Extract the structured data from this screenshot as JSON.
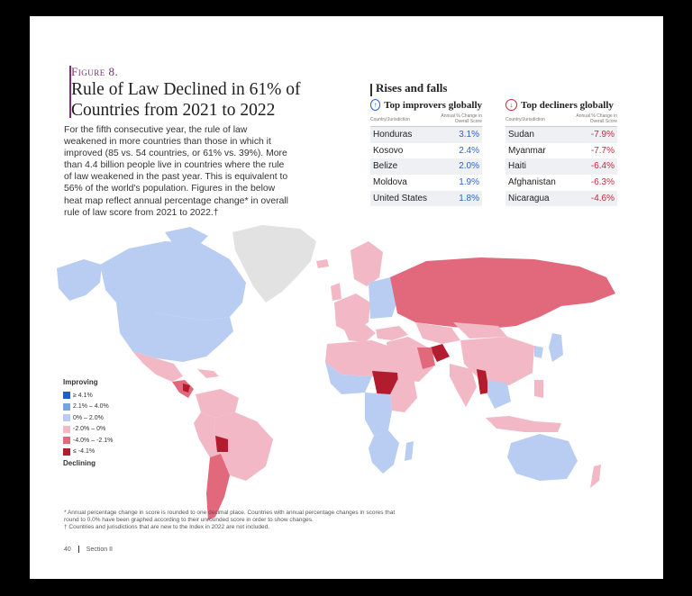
{
  "figure_label": "Figure 8.",
  "title_lines": [
    "Rule of Law Declined in 61% of",
    "Countries from 2021 to 2022"
  ],
  "body_lines": [
    "For the fifth consecutive year, the rule of law",
    "weakened in more countries than those in which it",
    "improved (85 vs. 54 countries, or 61% vs. 39%). More",
    "than 4.4 billion people live in countries where the rule",
    "of law weakened in the past year. This is equivalent to",
    "56% of the world's population. Figures in the below",
    "heat map reflect annual percentage change* in overall",
    "rule of law score from 2021 to 2022.†"
  ],
  "rises_falls_title": "Rises and falls",
  "improvers": {
    "title": "Top improvers globally",
    "icon": "up-arrow-circle-icon",
    "col_country": "Country/Jurisdiction",
    "col_value": "Annual % Change in Overall Score",
    "rows": [
      {
        "country": "Honduras",
        "value": "3.1%"
      },
      {
        "country": "Kosovo",
        "value": "2.4%"
      },
      {
        "country": "Belize",
        "value": "2.0%"
      },
      {
        "country": "Moldova",
        "value": "1.9%"
      },
      {
        "country": "United States",
        "value": "1.8%"
      }
    ]
  },
  "decliners": {
    "title": "Top decliners globally",
    "icon": "down-arrow-circle-icon",
    "col_country": "Country/Jurisdiction",
    "col_value": "Annual % Change in Overall Score",
    "rows": [
      {
        "country": "Sudan",
        "value": "-7.9%"
      },
      {
        "country": "Myanmar",
        "value": "-7.7%"
      },
      {
        "country": "Haiti",
        "value": "-6.4%"
      },
      {
        "country": "Afghanistan",
        "value": "-6.3%"
      },
      {
        "country": "Nicaragua",
        "value": "-4.6%"
      }
    ]
  },
  "legend": {
    "top_label": "Improving",
    "bottom_label": "Declining",
    "items": [
      {
        "label": "≥ 4.1%",
        "color": "#1f5fc4"
      },
      {
        "label": "2.1% – 4.0%",
        "color": "#7aa1e0"
      },
      {
        "label": "0% – 2.0%",
        "color": "#b9cdf2"
      },
      {
        "label": "-2.0% – 0%",
        "color": "#f2b8c6"
      },
      {
        "label": "-4.0% – -2.1%",
        "color": "#e2687b"
      },
      {
        "label": "≤ -4.1%",
        "color": "#b11c2e"
      }
    ]
  },
  "colors": {
    "improve_text": "#2c63c9",
    "decline_text": "#c8283a",
    "accent": "#7a2f6a",
    "no_data": "#e2e2e2"
  },
  "footnotes": [
    "* Annual percentage change in score is rounded to one decimal place. Countries with annual percentage changes in scores that",
    "round to 0.0% have been graphed according to their unrounded score in order to show changes.",
    "† Countries and jurisdictions that are new to the Index in 2022 are not included."
  ],
  "page_number": "40",
  "section_label": "Section II"
}
